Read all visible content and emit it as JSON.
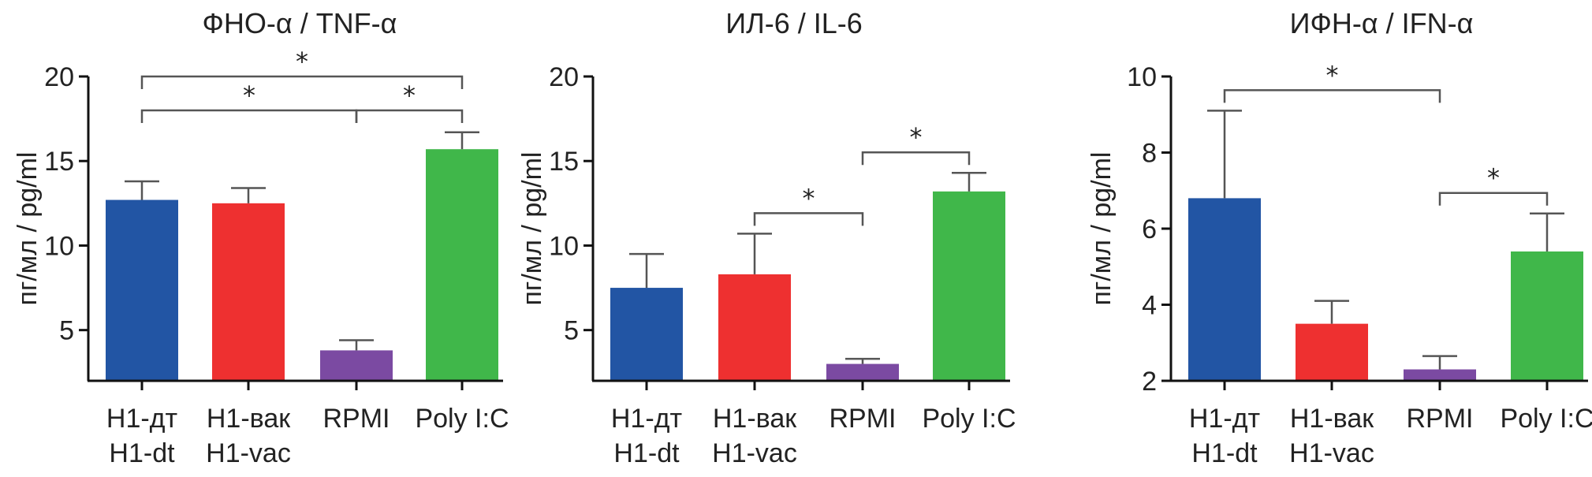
{
  "chart_data": [
    {
      "type": "bar",
      "title": "ФНО-α / TNF-α",
      "ylabel": "пг/мл / pg/ml",
      "ylim": [
        2,
        20
      ],
      "yticks": [
        5,
        10,
        15,
        20
      ],
      "categories": [
        [
          "Н1-дт",
          "H1-dt"
        ],
        [
          "Н1-вак",
          "H1-vac"
        ],
        [
          "RPMI"
        ],
        [
          "Poly I:C"
        ]
      ],
      "values": [
        12.7,
        12.5,
        3.8,
        15.7
      ],
      "errors": [
        1.1,
        0.9,
        0.6,
        1.0
      ],
      "colors": [
        "#2255a4",
        "#ee3030",
        "#7b4aa2",
        "#40b74a"
      ],
      "significance": [
        {
          "from": 0,
          "to": 2,
          "label": "*",
          "level": 1
        },
        {
          "from": 2,
          "to": 3,
          "label": "*",
          "level": 1
        },
        {
          "from": 0,
          "to": 3,
          "label": "*",
          "level": 2
        }
      ]
    },
    {
      "type": "bar",
      "title": "ИЛ-6 / IL-6",
      "ylabel": "пг/мл / pg/ml",
      "ylim": [
        2,
        20
      ],
      "yticks": [
        5,
        10,
        15,
        20
      ],
      "categories": [
        [
          "Н1-дт",
          "H1-dt"
        ],
        [
          "Н1-вак",
          "H1-vac"
        ],
        [
          "RPMI"
        ],
        [
          "Poly I:C"
        ]
      ],
      "values": [
        7.5,
        8.3,
        3.0,
        13.2
      ],
      "errors": [
        2.0,
        2.4,
        0.3,
        1.1
      ],
      "colors": [
        "#2255a4",
        "#ee3030",
        "#7b4aa2",
        "#40b74a"
      ],
      "significance": [
        {
          "from": 1,
          "to": 2,
          "label": "*",
          "level": 1
        },
        {
          "from": 2,
          "to": 3,
          "label": "*",
          "level": 1
        }
      ]
    },
    {
      "type": "bar",
      "title": "ИФН-α / IFN-α",
      "ylabel": "пг/мл / pg/ml",
      "ylim": [
        2,
        10
      ],
      "yticks": [
        2,
        4,
        6,
        8,
        10
      ],
      "categories": [
        [
          "Н1-дт",
          "H1-dt"
        ],
        [
          "Н1-вак",
          "H1-vac"
        ],
        [
          "RPMI"
        ],
        [
          "Poly I:C"
        ]
      ],
      "values": [
        6.8,
        3.5,
        2.3,
        5.4
      ],
      "errors": [
        2.3,
        0.6,
        0.35,
        1.0
      ],
      "colors": [
        "#2255a4",
        "#ee3030",
        "#7b4aa2",
        "#40b74a"
      ],
      "significance": [
        {
          "from": 0,
          "to": 2,
          "label": "*",
          "level": 1
        },
        {
          "from": 2,
          "to": 3,
          "label": "*",
          "level": 1
        }
      ]
    }
  ]
}
